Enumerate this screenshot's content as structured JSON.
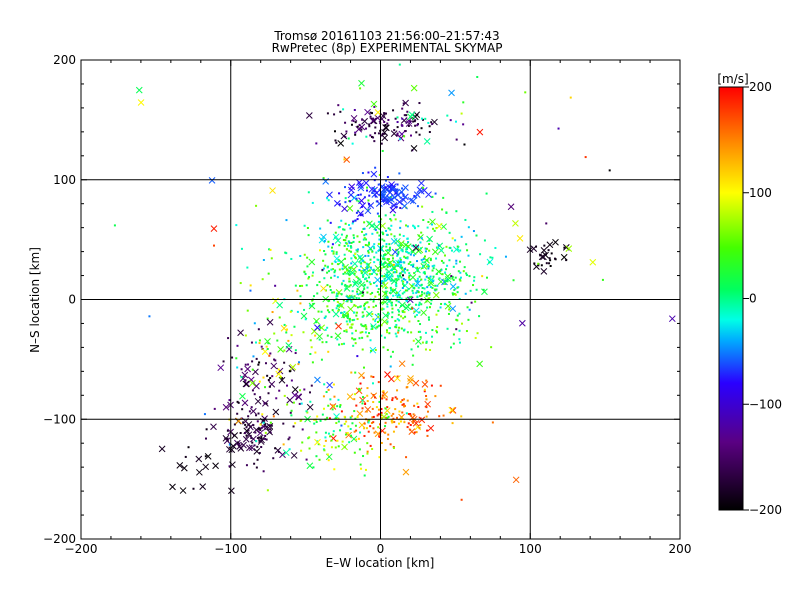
{
  "chart_data": {
    "type": "scatter",
    "title": "Tromsø 20161103 21:56:00–21:57:43",
    "subtitle": "RwPretec (8p) EXPERIMENTAL SKYMAP",
    "xlabel": "E–W location [km]",
    "ylabel": "N–S location [km]",
    "xlim": [
      -200,
      200
    ],
    "ylim": [
      -200,
      200
    ],
    "x_ticks": [
      "−200",
      "−100",
      "0",
      "100",
      "200"
    ],
    "y_ticks": [
      "−200",
      "−100",
      "0",
      "100",
      "200"
    ],
    "grid": "lines at -100, 0, 100",
    "markers": [
      "dot",
      "cross"
    ],
    "colorbar": {
      "label": "[m/s]",
      "placement": "right",
      "range": [
        -200,
        200
      ],
      "ticks": [
        "200",
        "100",
        "0",
        "−100",
        "−200"
      ],
      "colormap": [
        "#000000",
        "#5a0082",
        "#2a00ff",
        "#00ffe6",
        "#00ff00",
        "#ffff00",
        "#ff0000"
      ]
    },
    "clusters": [
      {
        "cx": 0,
        "cy": 30,
        "sx": 28,
        "sy": 25,
        "n": 600,
        "vmin": -40,
        "vmax": 70,
        "cross": 0.12
      },
      {
        "cx": 25,
        "cy": 20,
        "sx": 22,
        "sy": 18,
        "n": 200,
        "vmin": -50,
        "vmax": 40,
        "cross": 0.08
      },
      {
        "cx": 0,
        "cy": -15,
        "sx": 28,
        "sy": 15,
        "n": 260,
        "vmin": -20,
        "vmax": 80,
        "cross": 0.1
      },
      {
        "cx": 5,
        "cy": 88,
        "sx": 13,
        "sy": 7,
        "n": 80,
        "vmin": -75,
        "vmax": -55,
        "cross": 0.6
      },
      {
        "cx": -15,
        "cy": 82,
        "sx": 14,
        "sy": 12,
        "n": 40,
        "vmin": -95,
        "vmax": -60,
        "cross": 0.5
      },
      {
        "cx": 0,
        "cy": 145,
        "sx": 20,
        "sy": 8,
        "n": 120,
        "vmin": -200,
        "vmax": -120,
        "cross": 0.3
      },
      {
        "cx": 5,
        "cy": -95,
        "sx": 18,
        "sy": 15,
        "n": 180,
        "vmin": 110,
        "vmax": 200,
        "cross": 0.2
      },
      {
        "cx": -30,
        "cy": -105,
        "sx": 18,
        "sy": 18,
        "n": 120,
        "vmin": -20,
        "vmax": 110,
        "cross": 0.1
      },
      {
        "cx": -85,
        "cy": -112,
        "sx": 14,
        "sy": 12,
        "n": 110,
        "vmin": -190,
        "vmax": -140,
        "cross": 0.4
      },
      {
        "cx": -75,
        "cy": -65,
        "sx": 14,
        "sy": 18,
        "n": 70,
        "vmin": -200,
        "vmax": -130,
        "cross": 0.35
      },
      {
        "cx": -65,
        "cy": -40,
        "sx": 20,
        "sy": 45,
        "n": 80,
        "vmin": -60,
        "vmax": 140,
        "cross": 0.15
      },
      {
        "cx": 112,
        "cy": 35,
        "sx": 8,
        "sy": 7,
        "n": 30,
        "vmin": -200,
        "vmax": -180,
        "cross": 0.35
      },
      {
        "cx": -125,
        "cy": -145,
        "sx": 14,
        "sy": 16,
        "n": 18,
        "vmin": -200,
        "vmax": -180,
        "cross": 0.8
      },
      {
        "cx": 15,
        "cy": 160,
        "sx": 30,
        "sy": 25,
        "n": 25,
        "vmin": -30,
        "vmax": 60,
        "cross": 0.35
      },
      {
        "cx": 0,
        "cy": 40,
        "sx": 90,
        "sy": 90,
        "n": 90,
        "vmin": -200,
        "vmax": 200,
        "cross": 0.35
      }
    ]
  }
}
